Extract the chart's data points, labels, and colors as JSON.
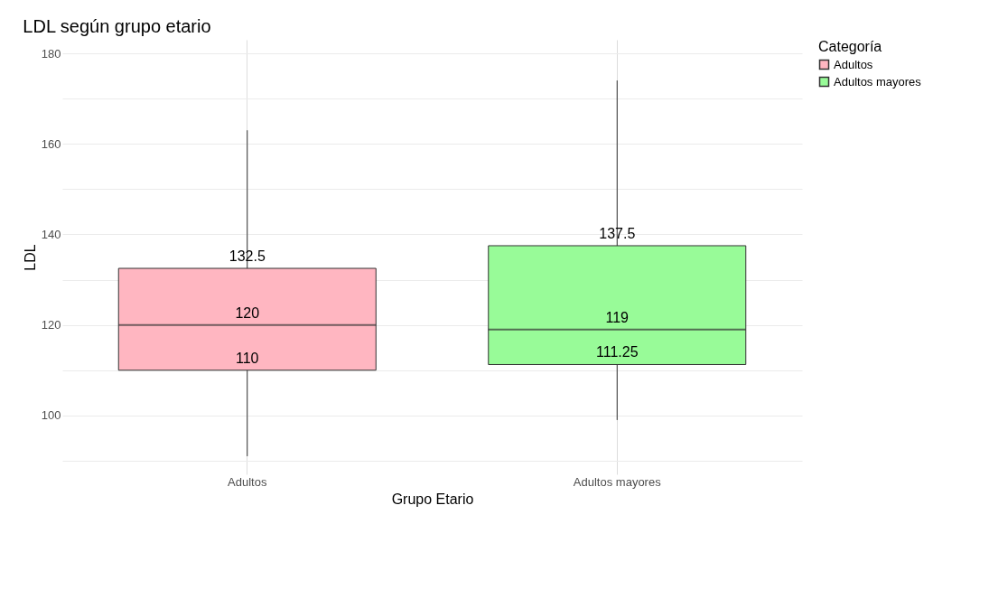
{
  "chart_data": {
    "type": "box",
    "title": "LDL según grupo etario",
    "xlabel": "Grupo Etario",
    "ylabel": "LDL",
    "legend_title": "Categoría",
    "categories": [
      "Adultos",
      "Adultos mayores"
    ],
    "series": [
      {
        "name": "Adultos",
        "color": "#ffb6c1",
        "boxes": [
          {
            "low": 91,
            "q1": 110,
            "median": 120,
            "q3": 132.5,
            "high": 163
          },
          null
        ]
      },
      {
        "name": "Adultos mayores",
        "color": "#98fb98",
        "boxes": [
          null,
          {
            "low": 99,
            "q1": 111.25,
            "median": 119,
            "q3": 137.5,
            "high": 174
          }
        ]
      }
    ],
    "ylim": [
      87,
      183
    ],
    "yticks": [
      {
        "value": 90,
        "label": null
      },
      100,
      {
        "value": 110,
        "label": null
      },
      120,
      {
        "value": 130,
        "label": null
      },
      140,
      {
        "value": 150,
        "label": null
      },
      160,
      {
        "value": 170,
        "label": null
      },
      180
    ],
    "annotations": [
      {
        "text": "132.5",
        "x": "Adultos",
        "y": 132.5
      },
      {
        "text": "120",
        "x": "Adultos",
        "y": 120
      },
      {
        "text": "110",
        "x": "Adultos",
        "y": 110
      },
      {
        "text": "137.5",
        "x": "Adultos mayores",
        "y": 137.5
      },
      {
        "text": "119",
        "x": "Adultos mayores",
        "y": 119
      },
      {
        "text": "111.25",
        "x": "Adultos mayores",
        "y": 111.25
      }
    ],
    "grid": true,
    "legend": "right"
  }
}
